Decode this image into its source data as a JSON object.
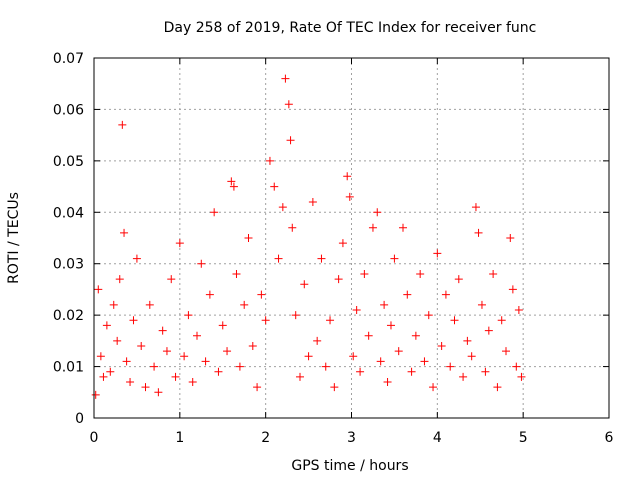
{
  "chart_data": {
    "type": "scatter",
    "title": "Day 258 of 2019, Rate Of TEC Index for receiver func",
    "xlabel": "GPS time / hours",
    "ylabel": "ROTI / TECUs",
    "xlim": [
      0,
      6
    ],
    "ylim": [
      0,
      0.07
    ],
    "xticks": [
      "0",
      "1",
      "2",
      "3",
      "4",
      "5",
      "6"
    ],
    "yticks": [
      "0",
      "0.01",
      "0.02",
      "0.03",
      "0.04",
      "0.05",
      "0.06",
      "0.07"
    ],
    "grid": true,
    "marker": "+",
    "marker_color": "#ff0000",
    "series": [
      {
        "name": "ROTI",
        "x": [
          0.02,
          0.05,
          0.08,
          0.11,
          0.15,
          0.19,
          0.23,
          0.27,
          0.3,
          0.33,
          0.35,
          0.38,
          0.42,
          0.46,
          0.5,
          0.55,
          0.6,
          0.65,
          0.7,
          0.75,
          0.8,
          0.85,
          0.9,
          0.95,
          1.0,
          1.05,
          1.1,
          1.15,
          1.2,
          1.25,
          1.3,
          1.35,
          1.4,
          1.45,
          1.5,
          1.55,
          1.6,
          1.63,
          1.66,
          1.7,
          1.75,
          1.8,
          1.85,
          1.9,
          1.95,
          2.0,
          2.05,
          2.1,
          2.15,
          2.2,
          2.23,
          2.27,
          2.29,
          2.31,
          2.35,
          2.4,
          2.45,
          2.5,
          2.55,
          2.6,
          2.65,
          2.7,
          2.75,
          2.8,
          2.85,
          2.9,
          2.95,
          2.98,
          3.02,
          3.06,
          3.1,
          3.15,
          3.2,
          3.25,
          3.3,
          3.34,
          3.38,
          3.42,
          3.46,
          3.5,
          3.55,
          3.6,
          3.65,
          3.7,
          3.75,
          3.8,
          3.85,
          3.9,
          3.95,
          4.0,
          4.05,
          4.1,
          4.15,
          4.2,
          4.25,
          4.3,
          4.35,
          4.4,
          4.45,
          4.48,
          4.52,
          4.56,
          4.6,
          4.65,
          4.7,
          4.75,
          4.8,
          4.85,
          4.88,
          4.92,
          4.95,
          4.98
        ],
        "y": [
          0.0045,
          0.025,
          0.012,
          0.008,
          0.018,
          0.009,
          0.022,
          0.015,
          0.027,
          0.057,
          0.036,
          0.011,
          0.007,
          0.019,
          0.031,
          0.014,
          0.006,
          0.022,
          0.01,
          0.005,
          0.017,
          0.013,
          0.027,
          0.008,
          0.034,
          0.012,
          0.02,
          0.007,
          0.016,
          0.03,
          0.011,
          0.024,
          0.04,
          0.009,
          0.018,
          0.013,
          0.046,
          0.045,
          0.028,
          0.01,
          0.022,
          0.035,
          0.014,
          0.006,
          0.024,
          0.019,
          0.05,
          0.045,
          0.031,
          0.041,
          0.066,
          0.061,
          0.054,
          0.037,
          0.02,
          0.008,
          0.026,
          0.012,
          0.042,
          0.015,
          0.031,
          0.01,
          0.019,
          0.006,
          0.027,
          0.034,
          0.047,
          0.043,
          0.012,
          0.021,
          0.009,
          0.028,
          0.016,
          0.037,
          0.04,
          0.011,
          0.022,
          0.007,
          0.018,
          0.031,
          0.013,
          0.037,
          0.024,
          0.009,
          0.016,
          0.028,
          0.011,
          0.02,
          0.006,
          0.032,
          0.014,
          0.024,
          0.01,
          0.019,
          0.027,
          0.008,
          0.015,
          0.012,
          0.041,
          0.036,
          0.022,
          0.009,
          0.017,
          0.028,
          0.006,
          0.019,
          0.013,
          0.035,
          0.025,
          0.01,
          0.021,
          0.008
        ]
      }
    ]
  }
}
